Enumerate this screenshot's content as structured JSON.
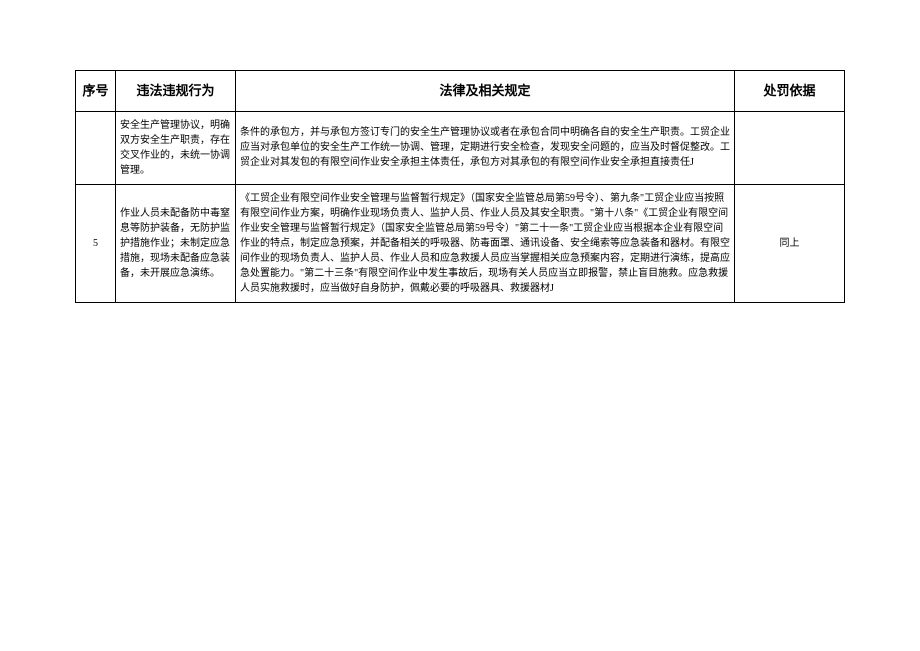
{
  "table": {
    "headers": {
      "seq": "序号",
      "behavior": "违法违规行为",
      "law": "法律及相关规定",
      "basis": "处罚依据"
    },
    "rows": [
      {
        "seq": "",
        "behavior": "安全生产管理协议，明确双方安全生产职责，存在交叉作业的，未统一协调管理。",
        "law": "条件的承包方，并与承包方签订专门的安全生产管理协议或者在承包合同中明确各自的安全生产职责。工贸企业应当对承包单位的安全生产工作统一协调、管理，定期进行安全检查，发现安全问题的，应当及时督促整改。工贸企业对其发包的有限空间作业安全承担主体责任，承包方对其承包的有限空间作业安全承担直接责任J",
        "basis": ""
      },
      {
        "seq": "5",
        "behavior": "作业人员未配备防中毒窒息等防护装备，无防护监护措施作业；未制定应急措施，现场未配备应急装备，未开展应急演练。",
        "law": "《工贸企业有限空间作业安全管理与监督暂行规定》（国家安全监管总局第59号令）、第九条\"工贸企业应当按照有限空间作业方案，明确作业现场负责人、监护人员、作业人员及其安全职责。\"第十八条\"《工贸企业有限空间作业安全管理与监督暂行规定》（国家安全监管总局第59号令）\"第二十一条\"工贸企业应当根据本企业有限空间作业的特点，制定应急预案，并配备相关的呼吸器、防毒面罩、通讯设备、安全绳索等应急装备和器材。有限空间作业的现场负责人、监护人员、作业人员和应急救援人员应当掌握相关应急预案内容，定期进行演练，提高应急处置能力。\"第二十三条\"有限空间作业中发生事故后，现场有关人员应当立即报警，禁止盲目施救。应急救援人员实施救援时，应当做好自身防护，佩戴必要的呼吸器具、救援器材J",
        "basis": "同上"
      }
    ]
  }
}
